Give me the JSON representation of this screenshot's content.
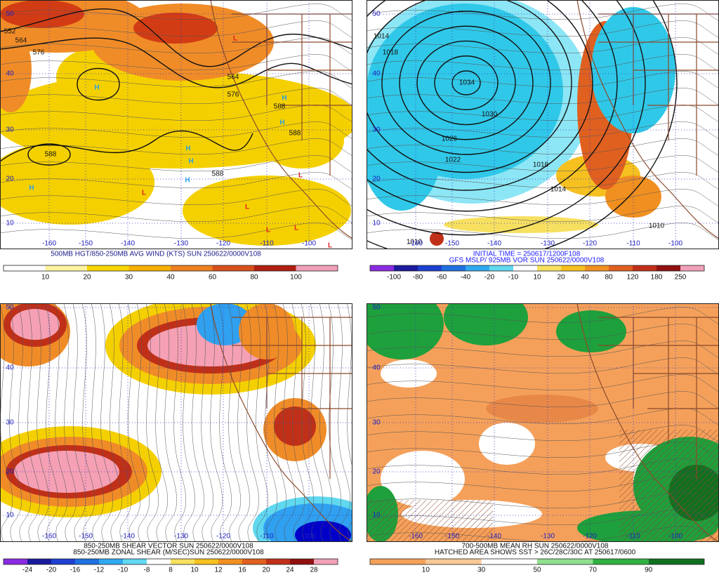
{
  "panels": [
    {
      "caption": [
        "500MB HGT/850-250MB AVG WIND (KTS) SUN 250622/0000V108"
      ],
      "colorbar_labels": [
        10,
        20,
        30,
        40,
        60,
        80,
        100
      ],
      "lat_labels": [
        50,
        40,
        30,
        20,
        10
      ],
      "lon_labels": [
        -160,
        -150,
        -140,
        -130,
        -120,
        -110,
        -100
      ],
      "map_labels": [
        "552",
        "564",
        "576",
        "564",
        "576",
        "588",
        "588",
        "588",
        "588",
        "H",
        "H",
        "H",
        "H",
        "H",
        "H",
        "H",
        "L",
        "L",
        "L",
        "L",
        "L",
        "L",
        "L"
      ]
    },
    {
      "caption": [
        "INITIAL TIME = 250617/1200F108",
        "GFS MSLP/ 925MB VOR SUN 250622/0000V108"
      ],
      "colorbar_labels": [
        -100,
        -80,
        -60,
        -40,
        -20,
        -10,
        10,
        20,
        40,
        80,
        120,
        180,
        250
      ],
      "lat_labels": [
        50,
        40,
        30,
        20,
        10
      ],
      "lon_labels": [
        -160,
        -150,
        -140,
        -130,
        -120,
        -110,
        -100
      ],
      "map_labels": [
        "1034",
        "1030",
        "1026",
        "1022",
        "1018",
        "1014",
        "1014",
        "1018",
        "1010",
        "1010"
      ]
    },
    {
      "caption": [
        "850-250MB SHEAR VECTOR SUN 250622/0000V108",
        "850-250MB ZONAL SHEAR (M/SEC)SUN 250622/0000V108"
      ],
      "colorbar_labels": [
        -24,
        -20,
        -16,
        -12,
        -10,
        -8,
        8,
        10,
        12,
        16,
        20,
        24,
        28
      ],
      "lat_labels": [
        50,
        40,
        30,
        20,
        10
      ],
      "lon_labels": [
        -160,
        -150,
        -140,
        -130,
        -120,
        -110,
        -100
      ],
      "map_labels": []
    },
    {
      "caption": [
        "700-500MB MEAN RH SUN 250622/0000V108",
        "HATCHED AREA SHOWS SST > 26C/28C/30C AT 250617/0600"
      ],
      "colorbar_labels": [
        10,
        30,
        50,
        70,
        90
      ],
      "lat_labels": [
        50,
        40,
        30,
        20,
        10
      ],
      "lon_labels": [
        -160,
        -150,
        -140,
        -130,
        -120,
        -110,
        -100
      ],
      "map_labels": []
    }
  ]
}
